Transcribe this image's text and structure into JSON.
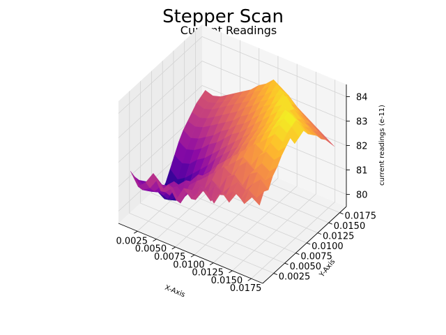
{
  "figure": {
    "suptitle": "Stepper Scan",
    "subtitle": "Current Readings"
  },
  "chart_data": {
    "type": "surface",
    "title": "Current Readings",
    "xlabel": "X-Axis",
    "ylabel": "Y-Axis",
    "zlabel": "current readings (e-11)",
    "colormap": "plasma",
    "xlim": [
      0.0,
      0.019
    ],
    "ylim": [
      0.0,
      0.019
    ],
    "zlim": [
      79.5,
      84.5
    ],
    "xticks": [
      "0.0025",
      "0.0050",
      "0.0075",
      "0.0100",
      "0.0125",
      "0.0150",
      "0.0175"
    ],
    "yticks": [
      "0.0025",
      "0.0050",
      "0.0075",
      "0.0100",
      "0.0125",
      "0.0150",
      "0.0175"
    ],
    "zticks": [
      "80",
      "81",
      "82",
      "83",
      "84"
    ],
    "grid": true,
    "x": [
      0.001,
      0.002,
      0.003,
      0.004,
      0.005,
      0.006,
      0.007,
      0.008,
      0.009,
      0.01,
      0.011,
      0.012,
      0.013,
      0.014,
      0.015,
      0.016,
      0.017,
      0.018
    ],
    "y": [
      0.001,
      0.002,
      0.003,
      0.004,
      0.005,
      0.006,
      0.007,
      0.008,
      0.009,
      0.01,
      0.011,
      0.012,
      0.013,
      0.014,
      0.015,
      0.016,
      0.017,
      0.018
    ],
    "z": [
      [
        81.6,
        81.1,
        81.4,
        81.9,
        81.3,
        81.7,
        81.2,
        81.8,
        81.5,
        81.9,
        82.1,
        81.7,
        82.3,
        82.0,
        82.5,
        82.2,
        82.6,
        82.4
      ],
      [
        81.2,
        80.8,
        81.0,
        81.5,
        81.1,
        81.4,
        80.9,
        81.6,
        81.3,
        81.8,
        81.5,
        81.9,
        82.0,
        82.3,
        82.1,
        82.6,
        82.4,
        82.8
      ],
      [
        80.9,
        80.6,
        80.7,
        81.1,
        80.8,
        81.3,
        81.0,
        81.4,
        81.7,
        81.5,
        82.0,
        81.8,
        82.2,
        82.5,
        82.3,
        82.7,
        83.0,
        82.7
      ],
      [
        80.7,
        80.4,
        80.5,
        80.9,
        81.2,
        80.9,
        81.3,
        81.6,
        81.4,
        81.9,
        81.7,
        82.3,
        82.5,
        82.2,
        82.8,
        83.0,
        82.8,
        83.1
      ],
      [
        80.5,
        80.3,
        80.2,
        80.6,
        80.9,
        81.2,
        81.0,
        81.5,
        81.8,
        82.1,
        82.4,
        82.2,
        82.7,
        83.0,
        82.8,
        83.2,
        83.0,
        83.3
      ],
      [
        80.2,
        80.0,
        79.9,
        80.4,
        80.7,
        81.0,
        81.4,
        81.2,
        81.7,
        82.0,
        82.3,
        82.6,
        82.9,
        82.7,
        83.2,
        83.5,
        83.3,
        83.6
      ],
      [
        79.8,
        79.6,
        79.7,
        80.1,
        80.5,
        80.8,
        81.2,
        81.5,
        81.9,
        82.2,
        82.5,
        82.8,
        83.1,
        83.4,
        83.2,
        83.7,
        83.5,
        83.8
      ],
      [
        79.6,
        79.4,
        79.5,
        79.9,
        80.3,
        80.7,
        81.0,
        81.3,
        81.7,
        82.1,
        82.4,
        82.7,
        83.0,
        83.3,
        83.6,
        83.9,
        83.7,
        84.0
      ],
      [
        79.8,
        79.5,
        79.7,
        80.0,
        80.4,
        80.8,
        81.1,
        81.5,
        81.8,
        82.2,
        82.6,
        82.9,
        83.2,
        83.5,
        83.8,
        84.1,
        83.9,
        83.6
      ],
      [
        80.2,
        79.9,
        80.1,
        80.4,
        80.7,
        81.0,
        81.4,
        81.7,
        82.0,
        82.3,
        82.7,
        83.0,
        83.3,
        83.6,
        83.9,
        84.2,
        84.0,
        83.7
      ],
      [
        80.6,
        80.4,
        80.5,
        80.8,
        81.0,
        81.3,
        81.6,
        81.9,
        82.2,
        82.5,
        82.8,
        83.1,
        83.4,
        83.7,
        84.0,
        84.3,
        84.1,
        83.8
      ],
      [
        81.0,
        80.8,
        80.9,
        81.1,
        81.4,
        81.6,
        81.9,
        82.2,
        82.4,
        82.7,
        83.0,
        83.3,
        83.6,
        83.9,
        84.1,
        84.0,
        83.8,
        83.5
      ],
      [
        81.3,
        81.1,
        81.2,
        81.4,
        81.6,
        81.9,
        82.1,
        82.4,
        82.6,
        82.9,
        83.2,
        83.5,
        83.8,
        84.0,
        83.9,
        83.7,
        83.5,
        83.3
      ],
      [
        81.5,
        81.4,
        81.5,
        81.7,
        81.9,
        82.1,
        82.3,
        82.6,
        82.8,
        83.1,
        83.4,
        83.6,
        83.9,
        84.2,
        83.8,
        83.5,
        83.3,
        83.1
      ],
      [
        81.7,
        81.6,
        81.7,
        81.9,
        82.1,
        82.3,
        82.5,
        82.8,
        83.0,
        83.3,
        83.5,
        83.8,
        84.0,
        83.7,
        83.5,
        83.2,
        83.0,
        82.8
      ],
      [
        81.9,
        81.8,
        81.9,
        82.1,
        82.3,
        82.5,
        82.7,
        82.9,
        83.2,
        83.4,
        83.7,
        83.9,
        83.8,
        83.5,
        83.2,
        83.0,
        82.8,
        82.6
      ],
      [
        82.0,
        81.9,
        82.0,
        82.2,
        82.4,
        82.6,
        82.8,
        83.1,
        83.3,
        83.6,
        83.8,
        83.6,
        83.4,
        83.1,
        82.9,
        82.7,
        82.5,
        82.3
      ],
      [
        82.1,
        82.0,
        82.1,
        82.3,
        82.5,
        82.7,
        82.9,
        83.2,
        83.4,
        83.7,
        83.5,
        83.3,
        83.0,
        82.8,
        82.6,
        82.4,
        82.2,
        82.0
      ]
    ]
  }
}
